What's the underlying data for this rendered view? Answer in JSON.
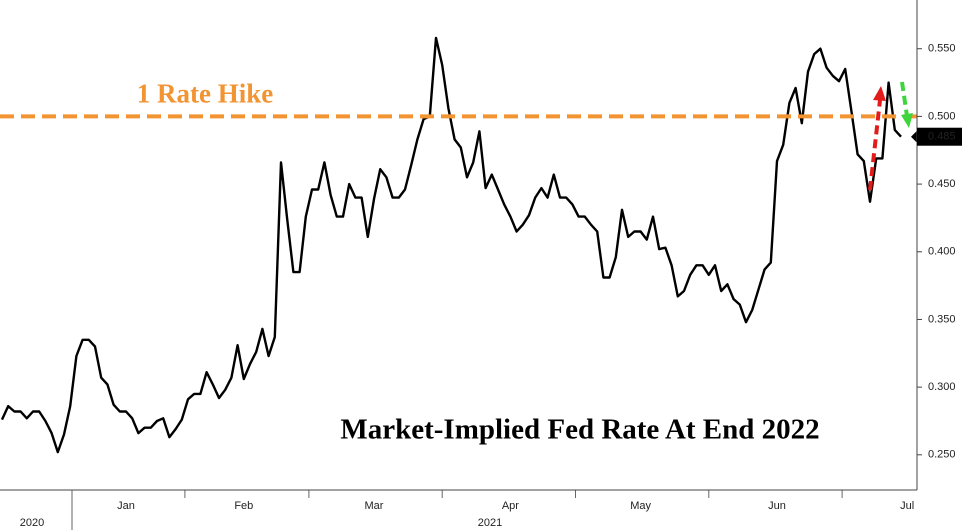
{
  "chart_data": {
    "type": "line",
    "title": "Market-Implied Fed Rate At End 2022",
    "categories": [
      null,
      null,
      null,
      null,
      null,
      null,
      null,
      null,
      null,
      null,
      null,
      null,
      null,
      null,
      null,
      null,
      null,
      null,
      null,
      null,
      "Jan",
      null,
      null,
      null,
      null,
      null,
      null,
      null,
      null,
      null,
      null,
      null,
      null,
      null,
      null,
      null,
      null,
      null,
      null,
      "Feb",
      null,
      null,
      null,
      null,
      null,
      null,
      null,
      null,
      null,
      null,
      null,
      null,
      null,
      null,
      null,
      null,
      null,
      null,
      null,
      null,
      "Mar",
      null,
      null,
      null,
      null,
      null,
      null,
      null,
      null,
      null,
      null,
      null,
      null,
      null,
      null,
      null,
      null,
      null,
      null,
      null,
      null,
      null,
      "Apr",
      null,
      null,
      null,
      null,
      null,
      null,
      null,
      null,
      null,
      null,
      null,
      null,
      null,
      null,
      null,
      null,
      null,
      null,
      null,
      null,
      "May",
      null,
      null,
      null,
      null,
      null,
      null,
      null,
      null,
      null,
      null,
      null,
      null,
      null,
      null,
      null,
      null,
      null,
      null,
      null,
      null,
      null,
      "Jun",
      null,
      null,
      null,
      null,
      null,
      null,
      null,
      null,
      null,
      null,
      null,
      null,
      null,
      null,
      null,
      null,
      null,
      null,
      null,
      null,
      "Jul",
      null,
      null
    ],
    "year_labels": [
      "2020",
      "2021"
    ],
    "values": [
      0.276,
      0.286,
      0.282,
      0.282,
      0.277,
      0.282,
      0.282,
      0.275,
      0.266,
      0.252,
      0.265,
      0.286,
      0.323,
      0.335,
      0.335,
      0.33,
      0.307,
      0.302,
      0.287,
      0.282,
      0.282,
      0.277,
      0.266,
      0.27,
      0.27,
      0.275,
      0.277,
      0.263,
      0.269,
      0.276,
      0.291,
      0.295,
      0.295,
      0.311,
      0.302,
      0.292,
      0.298,
      0.307,
      0.331,
      0.306,
      0.317,
      0.326,
      0.343,
      0.323,
      0.337,
      0.466,
      0.424,
      0.385,
      0.385,
      0.426,
      0.446,
      0.446,
      0.466,
      0.442,
      0.426,
      0.426,
      0.45,
      0.44,
      0.44,
      0.411,
      0.439,
      0.461,
      0.455,
      0.44,
      0.44,
      0.446,
      0.464,
      0.483,
      0.498,
      0.5,
      0.558,
      0.538,
      0.506,
      0.483,
      0.477,
      0.455,
      0.466,
      0.489,
      0.447,
      0.457,
      0.446,
      0.435,
      0.426,
      0.415,
      0.42,
      0.427,
      0.44,
      0.447,
      0.44,
      0.457,
      0.44,
      0.44,
      0.435,
      0.426,
      0.426,
      0.42,
      0.415,
      0.381,
      0.381,
      0.396,
      0.431,
      0.411,
      0.415,
      0.415,
      0.409,
      0.426,
      0.402,
      0.403,
      0.39,
      0.367,
      0.371,
      0.383,
      0.39,
      0.39,
      0.383,
      0.39,
      0.371,
      0.376,
      0.365,
      0.361,
      0.348,
      0.357,
      0.372,
      0.387,
      0.392,
      0.467,
      0.479,
      0.51,
      0.521,
      0.495,
      0.533,
      0.546,
      0.55,
      0.536,
      0.53,
      0.526,
      0.535,
      0.504,
      0.472,
      0.467,
      0.437,
      0.469,
      0.469,
      0.525,
      0.49,
      0.485,
      null,
      null,
      null
    ],
    "color": "#000000",
    "ylim": [
      0.224,
      0.586
    ],
    "yticks": [
      {
        "value": 0.25,
        "label": "0.250"
      },
      {
        "value": 0.3,
        "label": "0.300"
      },
      {
        "value": 0.35,
        "label": "0.350"
      },
      {
        "value": 0.4,
        "label": "0.400"
      },
      {
        "value": 0.45,
        "label": "0.450"
      },
      {
        "value": 0.5,
        "label": "0.500"
      },
      {
        "value": 0.55,
        "label": "0.550"
      }
    ],
    "reference_line": {
      "value": 0.5,
      "label": "1 Rate Hike",
      "color": "#f39433"
    }
  }
}
